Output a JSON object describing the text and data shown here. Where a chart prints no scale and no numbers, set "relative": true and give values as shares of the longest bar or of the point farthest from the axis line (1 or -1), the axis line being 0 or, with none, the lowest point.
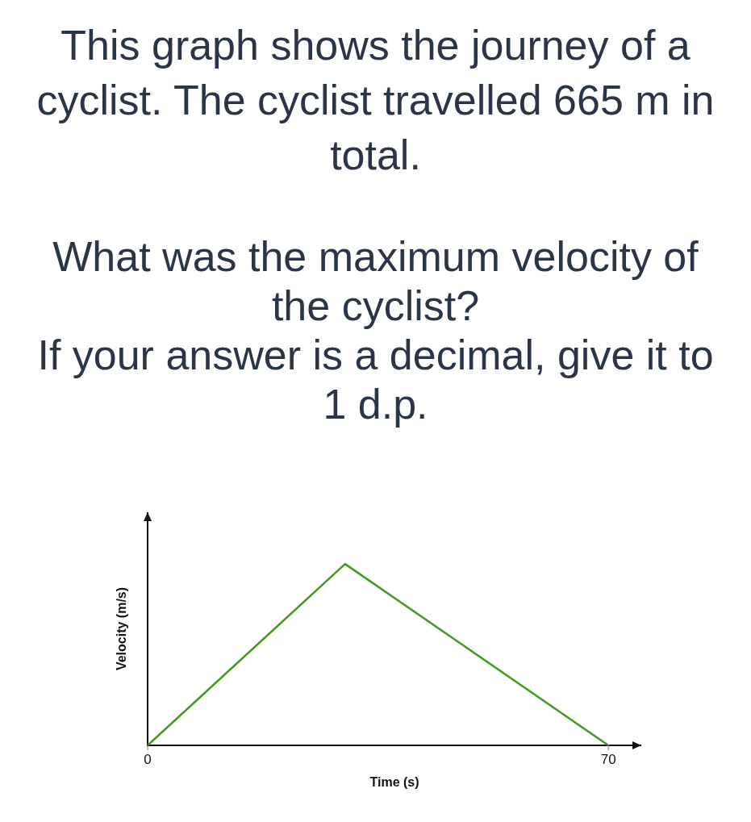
{
  "chart_data": {
    "type": "line",
    "title": "This graph shows the journey of a cyclist. The cyclist travelled 665 m in total.",
    "subtitle": "What was the maximum velocity of the cyclist?",
    "annotations": [
      "If your answer is a decimal, give it to 1 d.p."
    ],
    "xlabel": "Time (s)",
    "ylabel": "Velocity (m/s)",
    "relative": true,
    "x": [
      0,
      30,
      70
    ],
    "values": [
      0,
      1,
      0
    ],
    "color": "#3f9a1e",
    "xlim": [
      0,
      75
    ],
    "xticks": [
      0,
      70
    ]
  }
}
